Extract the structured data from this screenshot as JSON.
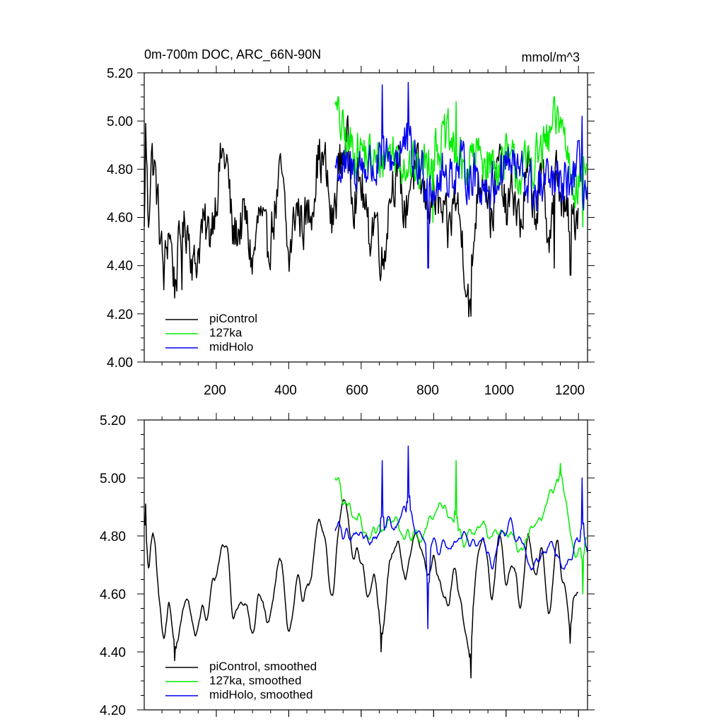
{
  "chart_data": [
    {
      "type": "line",
      "title": "0m-700m DOC, ARC_66N-90N",
      "units": "mmol/m^3",
      "xlim": [
        1,
        1225
      ],
      "ylim": [
        4.0,
        5.2
      ],
      "yticks": [
        "4.00",
        "4.20",
        "4.40",
        "4.60",
        "4.80",
        "5.00",
        "5.20"
      ],
      "xticks": [
        "200",
        "400",
        "600",
        "800",
        "1000",
        "1200"
      ],
      "legend_position": "bottom-left",
      "legend": [
        "piControl",
        "127ka",
        "midHolo"
      ],
      "series": [
        {
          "name": "piControl",
          "color": "#000000",
          "x_start": 1,
          "x_end": 1200,
          "mean": 4.7,
          "amp": 0.12,
          "anchors": [
            [
              1,
              4.52
            ],
            [
              5,
              4.98
            ],
            [
              12,
              4.58
            ],
            [
              20,
              4.86
            ],
            [
              30,
              4.8
            ],
            [
              40,
              4.62
            ],
            [
              55,
              4.35
            ],
            [
              70,
              4.58
            ],
            [
              85,
              4.32
            ],
            [
              100,
              4.5
            ],
            [
              120,
              4.58
            ],
            [
              140,
              4.38
            ],
            [
              160,
              4.56
            ],
            [
              180,
              4.52
            ],
            [
              200,
              4.7
            ],
            [
              215,
              4.86
            ],
            [
              230,
              4.82
            ],
            [
              245,
              4.52
            ],
            [
              260,
              4.55
            ],
            [
              280,
              4.6
            ],
            [
              300,
              4.4
            ],
            [
              320,
              4.62
            ],
            [
              340,
              4.45
            ],
            [
              360,
              4.62
            ],
            [
              380,
              4.78
            ],
            [
              400,
              4.4
            ],
            [
              420,
              4.65
            ],
            [
              440,
              4.58
            ],
            [
              460,
              4.62
            ],
            [
              480,
              4.85
            ],
            [
              500,
              4.82
            ],
            [
              520,
              4.55
            ],
            [
              540,
              4.82
            ],
            [
              560,
              4.92
            ],
            [
              580,
              4.7
            ],
            [
              600,
              4.75
            ],
            [
              620,
              4.52
            ],
            [
              640,
              4.62
            ],
            [
              660,
              4.4
            ],
            [
              680,
              4.72
            ],
            [
              700,
              4.82
            ],
            [
              720,
              4.6
            ],
            [
              740,
              4.8
            ],
            [
              760,
              4.75
            ],
            [
              780,
              4.66
            ],
            [
              800,
              4.7
            ],
            [
              820,
              4.62
            ],
            [
              840,
              4.52
            ],
            [
              860,
              4.7
            ],
            [
              880,
              4.5
            ],
            [
              900,
              4.22
            ],
            [
              920,
              4.72
            ],
            [
              940,
              4.82
            ],
            [
              960,
              4.58
            ],
            [
              980,
              4.85
            ],
            [
              1000,
              4.6
            ],
            [
              1020,
              4.72
            ],
            [
              1040,
              4.55
            ],
            [
              1060,
              4.8
            ],
            [
              1080,
              4.62
            ],
            [
              1100,
              4.76
            ],
            [
              1120,
              4.52
            ],
            [
              1140,
              4.8
            ],
            [
              1160,
              4.62
            ],
            [
              1180,
              4.56
            ],
            [
              1200,
              4.66
            ]
          ],
          "spikes": [
            [
              5,
              4.99
            ],
            [
              105,
              4.3
            ],
            [
              655,
              4.36
            ],
            [
              903,
              4.19
            ],
            [
              1133,
              4.39
            ],
            [
              1178,
              4.36
            ]
          ]
        },
        {
          "name": "127ka",
          "color": "#00ee00",
          "x_start": 528,
          "x_end": 1222,
          "mean": 4.85,
          "amp": 0.11,
          "anchors": [
            [
              528,
              5.05
            ],
            [
              560,
              4.9
            ],
            [
              600,
              4.88
            ],
            [
              640,
              4.82
            ],
            [
              680,
              4.88
            ],
            [
              720,
              4.84
            ],
            [
              760,
              4.78
            ],
            [
              800,
              4.9
            ],
            [
              840,
              4.92
            ],
            [
              880,
              4.8
            ],
            [
              920,
              4.86
            ],
            [
              960,
              4.82
            ],
            [
              1000,
              4.84
            ],
            [
              1040,
              4.78
            ],
            [
              1080,
              4.84
            ],
            [
              1120,
              4.92
            ],
            [
              1150,
              5.02
            ],
            [
              1180,
              4.8
            ],
            [
              1200,
              4.72
            ],
            [
              1222,
              4.85
            ]
          ],
          "spikes": [
            [
              528,
              5.08
            ],
            [
              798,
              4.58
            ],
            [
              862,
              5.08
            ],
            [
              1133,
              5.1
            ],
            [
              1212,
              4.56
            ]
          ]
        },
        {
          "name": "midHolo",
          "color": "#0000ee",
          "x_start": 528,
          "x_end": 1225,
          "mean": 4.8,
          "amp": 0.11,
          "anchors": [
            [
              528,
              4.82
            ],
            [
              560,
              4.78
            ],
            [
              600,
              4.82
            ],
            [
              640,
              4.8
            ],
            [
              680,
              4.84
            ],
            [
              720,
              4.9
            ],
            [
              760,
              4.8
            ],
            [
              800,
              4.74
            ],
            [
              840,
              4.78
            ],
            [
              880,
              4.8
            ],
            [
              920,
              4.76
            ],
            [
              960,
              4.72
            ],
            [
              1000,
              4.84
            ],
            [
              1040,
              4.78
            ],
            [
              1080,
              4.7
            ],
            [
              1120,
              4.74
            ],
            [
              1160,
              4.72
            ],
            [
              1200,
              4.8
            ],
            [
              1225,
              4.7
            ]
          ],
          "spikes": [
            [
              658,
              5.15
            ],
            [
              730,
              5.16
            ],
            [
              785,
              4.39
            ],
            [
              1210,
              5.02
            ]
          ]
        }
      ]
    },
    {
      "type": "line",
      "title": "",
      "xlim": [
        1,
        1225
      ],
      "ylim": [
        4.2,
        5.2
      ],
      "yticks": [
        "4.20",
        "4.40",
        "4.60",
        "4.80",
        "5.00",
        "5.20"
      ],
      "xticks": [],
      "legend_position": "bottom-left",
      "legend": [
        "piControl, smoothed",
        "127ka, smoothed",
        "midHolo, smoothed"
      ],
      "series": [
        {
          "name": "piControl, smoothed",
          "color": "#000000",
          "x_start": 1,
          "x_end": 1200,
          "mean": 4.7,
          "amp": 0.07,
          "anchors": [
            [
              1,
              4.78
            ],
            [
              5,
              4.9
            ],
            [
              12,
              4.6
            ],
            [
              20,
              4.84
            ],
            [
              30,
              4.8
            ],
            [
              40,
              4.62
            ],
            [
              55,
              4.42
            ],
            [
              70,
              4.58
            ],
            [
              85,
              4.4
            ],
            [
              100,
              4.5
            ],
            [
              120,
              4.58
            ],
            [
              140,
              4.42
            ],
            [
              160,
              4.56
            ],
            [
              180,
              4.54
            ],
            [
              200,
              4.68
            ],
            [
              215,
              4.84
            ],
            [
              230,
              4.8
            ],
            [
              245,
              4.5
            ],
            [
              260,
              4.56
            ],
            [
              280,
              4.6
            ],
            [
              300,
              4.44
            ],
            [
              320,
              4.62
            ],
            [
              340,
              4.48
            ],
            [
              360,
              4.62
            ],
            [
              380,
              4.74
            ],
            [
              400,
              4.46
            ],
            [
              420,
              4.66
            ],
            [
              440,
              4.6
            ],
            [
              460,
              4.62
            ],
            [
              480,
              4.86
            ],
            [
              500,
              4.84
            ],
            [
              520,
              4.56
            ],
            [
              540,
              4.84
            ],
            [
              560,
              4.9
            ],
            [
              580,
              4.7
            ],
            [
              600,
              4.72
            ],
            [
              620,
              4.54
            ],
            [
              640,
              4.62
            ],
            [
              660,
              4.46
            ],
            [
              680,
              4.72
            ],
            [
              700,
              4.8
            ],
            [
              720,
              4.62
            ],
            [
              740,
              4.8
            ],
            [
              760,
              4.76
            ],
            [
              780,
              4.66
            ],
            [
              800,
              4.72
            ],
            [
              820,
              4.62
            ],
            [
              840,
              4.54
            ],
            [
              860,
              4.7
            ],
            [
              880,
              4.54
            ],
            [
              900,
              4.34
            ],
            [
              920,
              4.72
            ],
            [
              940,
              4.82
            ],
            [
              960,
              4.58
            ],
            [
              980,
              4.84
            ],
            [
              1000,
              4.62
            ],
            [
              1020,
              4.72
            ],
            [
              1040,
              4.56
            ],
            [
              1060,
              4.8
            ],
            [
              1080,
              4.64
            ],
            [
              1100,
              4.76
            ],
            [
              1120,
              4.54
            ],
            [
              1140,
              4.78
            ],
            [
              1160,
              4.62
            ],
            [
              1180,
              4.56
            ],
            [
              1200,
              4.66
            ]
          ],
          "spikes": [
            [
              5,
              4.91
            ],
            [
              85,
              4.37
            ],
            [
              655,
              4.4
            ],
            [
              903,
              4.31
            ],
            [
              1178,
              4.43
            ]
          ]
        },
        {
          "name": "127ka, smoothed",
          "color": "#00ee00",
          "x_start": 528,
          "x_end": 1222,
          "mean": 4.84,
          "amp": 0.07,
          "anchors": [
            [
              528,
              4.99
            ],
            [
              560,
              4.9
            ],
            [
              600,
              4.86
            ],
            [
              640,
              4.8
            ],
            [
              680,
              4.86
            ],
            [
              720,
              4.84
            ],
            [
              760,
              4.78
            ],
            [
              800,
              4.88
            ],
            [
              840,
              4.9
            ],
            [
              880,
              4.8
            ],
            [
              920,
              4.86
            ],
            [
              960,
              4.82
            ],
            [
              1000,
              4.82
            ],
            [
              1040,
              4.76
            ],
            [
              1080,
              4.82
            ],
            [
              1120,
              4.9
            ],
            [
              1150,
              5.0
            ],
            [
              1180,
              4.8
            ],
            [
              1200,
              4.72
            ],
            [
              1222,
              4.84
            ]
          ],
          "spikes": [
            [
              528,
              5.0
            ],
            [
              862,
              5.06
            ],
            [
              1150,
              5.05
            ],
            [
              1212,
              4.6
            ]
          ]
        },
        {
          "name": "midHolo, smoothed",
          "color": "#0000ee",
          "x_start": 528,
          "x_end": 1225,
          "mean": 4.8,
          "amp": 0.07,
          "anchors": [
            [
              528,
              4.82
            ],
            [
              560,
              4.8
            ],
            [
              600,
              4.82
            ],
            [
              640,
              4.8
            ],
            [
              680,
              4.84
            ],
            [
              720,
              4.88
            ],
            [
              760,
              4.8
            ],
            [
              800,
              4.74
            ],
            [
              840,
              4.78
            ],
            [
              880,
              4.8
            ],
            [
              920,
              4.76
            ],
            [
              960,
              4.72
            ],
            [
              1000,
              4.84
            ],
            [
              1040,
              4.78
            ],
            [
              1080,
              4.7
            ],
            [
              1120,
              4.74
            ],
            [
              1160,
              4.72
            ],
            [
              1200,
              4.78
            ],
            [
              1225,
              4.73
            ]
          ],
          "spikes": [
            [
              658,
              5.06
            ],
            [
              730,
              5.11
            ],
            [
              785,
              4.48
            ],
            [
              1210,
              5.0
            ]
          ]
        }
      ]
    }
  ]
}
